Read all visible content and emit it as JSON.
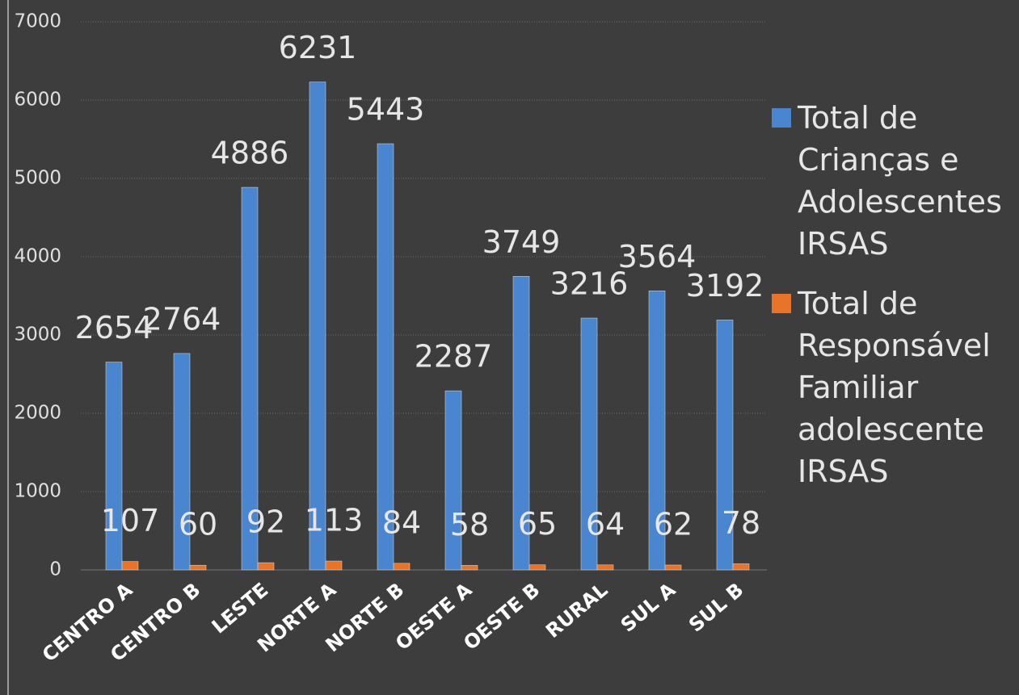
{
  "chart_data": {
    "type": "bar",
    "categories": [
      "CENTRO A",
      "CENTRO B",
      "LESTE",
      "NORTE A",
      "NORTE B",
      "OESTE A",
      "OESTE B",
      "RURAL",
      "SUL A",
      "SUL B"
    ],
    "series": [
      {
        "name": "Total de Crianças e Adolescentes IRSAS",
        "color": "#4a86cf",
        "values": [
          2654,
          2764,
          4886,
          6231,
          5443,
          2287,
          3749,
          3216,
          3564,
          3192
        ]
      },
      {
        "name": "Total de Responsável Familiar adolescente IRSAS",
        "color": "#e8742a",
        "values": [
          107,
          60,
          92,
          113,
          84,
          58,
          65,
          64,
          62,
          78
        ]
      }
    ],
    "ylim": [
      0,
      7000
    ],
    "yticks": [
      0,
      1000,
      2000,
      3000,
      4000,
      5000,
      6000,
      7000
    ],
    "grid": true,
    "legend": "right"
  }
}
